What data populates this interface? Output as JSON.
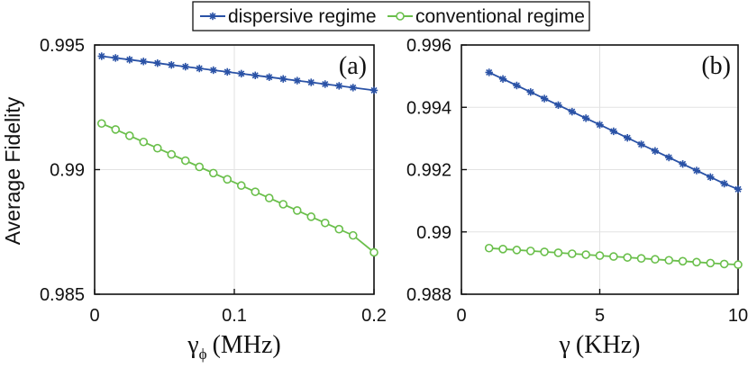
{
  "legend": [
    {
      "label": "dispersive regime",
      "color": "#2a52a6",
      "marker": "star"
    },
    {
      "label": "conventional regime",
      "color": "#6abf4b",
      "marker": "circle"
    }
  ],
  "ylabel": "Average Fidelity",
  "chart_data": [
    {
      "type": "line",
      "panel_label": "(a)",
      "xlabel_symbol": "γ",
      "xlabel_subscript": "ϕ",
      "xlabel_unit": "(MHz)",
      "xlim": [
        0,
        0.2
      ],
      "ylim": [
        0.985,
        0.995
      ],
      "xticks": [
        0,
        0.1,
        0.2
      ],
      "xtick_labels": [
        "0",
        "0.1",
        "0.2"
      ],
      "yticks": [
        0.985,
        0.99,
        0.995
      ],
      "ytick_labels": [
        "0.985",
        "0.99",
        "0.995"
      ],
      "grid": true,
      "x": [
        0.005,
        0.015,
        0.025,
        0.035,
        0.045,
        0.055,
        0.065,
        0.075,
        0.085,
        0.095,
        0.105,
        0.115,
        0.125,
        0.135,
        0.145,
        0.155,
        0.165,
        0.175,
        0.185,
        0.2
      ],
      "series": [
        {
          "name": "dispersive regime",
          "color": "#2a52a6",
          "marker": "star",
          "values": [
            0.99455,
            0.99448,
            0.99441,
            0.99434,
            0.99427,
            0.9942,
            0.99413,
            0.99406,
            0.99399,
            0.99392,
            0.99385,
            0.99378,
            0.99371,
            0.99364,
            0.99357,
            0.9935,
            0.99343,
            0.99336,
            0.99329,
            0.99318
          ]
        },
        {
          "name": "conventional regime",
          "color": "#6abf4b",
          "marker": "circle",
          "values": [
            0.99185,
            0.99161,
            0.99136,
            0.99111,
            0.99086,
            0.99061,
            0.99036,
            0.99011,
            0.98986,
            0.98961,
            0.98936,
            0.98911,
            0.98886,
            0.98861,
            0.98836,
            0.98811,
            0.98786,
            0.98761,
            0.98736,
            0.98668
          ]
        }
      ]
    },
    {
      "type": "line",
      "panel_label": "(b)",
      "xlabel_symbol": "γ",
      "xlabel_subscript": "",
      "xlabel_unit": "(KHz)",
      "xlim": [
        0,
        10
      ],
      "ylim": [
        0.988,
        0.996
      ],
      "xticks": [
        0,
        5,
        10
      ],
      "xtick_labels": [
        "0",
        "5",
        "10"
      ],
      "yticks": [
        0.988,
        0.99,
        0.992,
        0.994,
        0.996
      ],
      "ytick_labels": [
        "0.988",
        "0.99",
        "0.992",
        "0.994",
        "0.996"
      ],
      "grid": true,
      "x": [
        1,
        1.5,
        2,
        2.5,
        3,
        3.5,
        4,
        4.5,
        5,
        5.5,
        6,
        6.5,
        7,
        7.5,
        8,
        8.5,
        9,
        9.5,
        10
      ],
      "series": [
        {
          "name": "dispersive regime",
          "color": "#2a52a6",
          "marker": "star",
          "values": [
            0.99512,
            0.99491,
            0.9947,
            0.99449,
            0.99428,
            0.99407,
            0.99386,
            0.99365,
            0.99344,
            0.99323,
            0.99302,
            0.99281,
            0.9926,
            0.99239,
            0.99218,
            0.99197,
            0.99176,
            0.99155,
            0.99137
          ]
        },
        {
          "name": "conventional regime",
          "color": "#6abf4b",
          "marker": "circle",
          "values": [
            0.98948,
            0.98945,
            0.98942,
            0.98939,
            0.98936,
            0.98933,
            0.9893,
            0.98927,
            0.98924,
            0.98921,
            0.98918,
            0.98915,
            0.98912,
            0.98909,
            0.98906,
            0.98903,
            0.989,
            0.98897,
            0.98895
          ]
        }
      ]
    }
  ]
}
